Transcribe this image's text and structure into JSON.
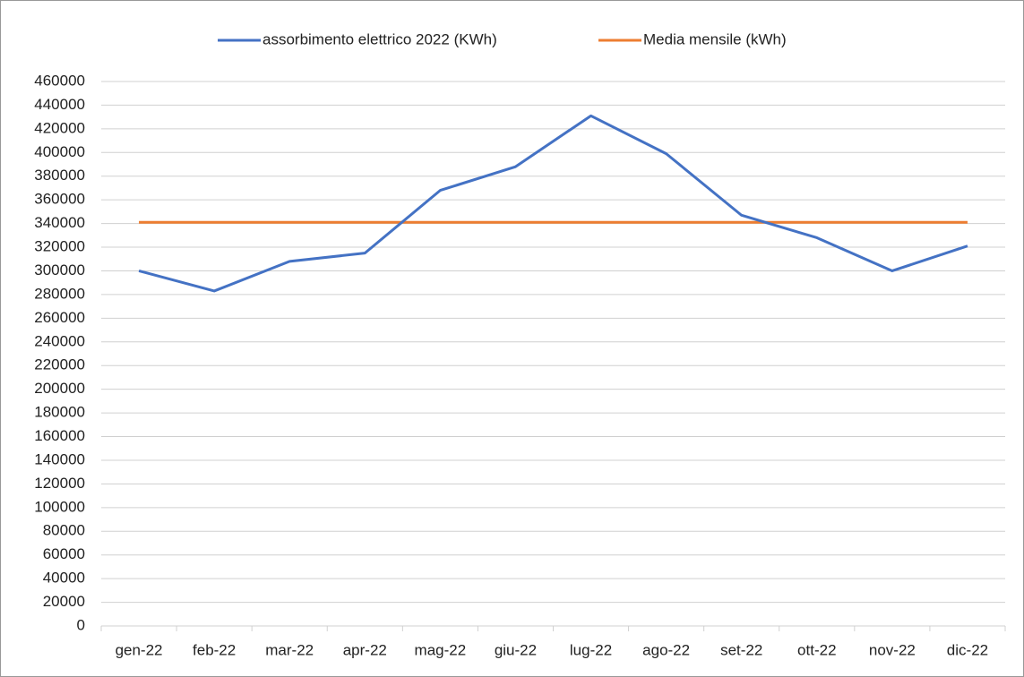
{
  "chart_data": {
    "type": "line",
    "categories": [
      "gen-22",
      "feb-22",
      "mar-22",
      "apr-22",
      "mag-22",
      "giu-22",
      "lug-22",
      "ago-22",
      "set-22",
      "ott-22",
      "nov-22",
      "dic-22"
    ],
    "series": [
      {
        "name": "assorbimento elettrico 2022 (KWh)",
        "color": "#4472c4",
        "values": [
          300000,
          283000,
          308000,
          315000,
          368000,
          388000,
          431000,
          399000,
          347000,
          328000,
          300000,
          321000
        ]
      },
      {
        "name": "Media mensile (kWh)",
        "color": "#ed7d31",
        "values": [
          341000,
          341000,
          341000,
          341000,
          341000,
          341000,
          341000,
          341000,
          341000,
          341000,
          341000,
          341000
        ]
      }
    ],
    "ylim": [
      0,
      460000
    ],
    "yticks": [
      0,
      20000,
      40000,
      60000,
      80000,
      100000,
      120000,
      140000,
      160000,
      180000,
      200000,
      220000,
      240000,
      260000,
      280000,
      300000,
      320000,
      340000,
      360000,
      380000,
      400000,
      420000,
      440000,
      460000
    ],
    "grid": true,
    "legend": "top"
  }
}
